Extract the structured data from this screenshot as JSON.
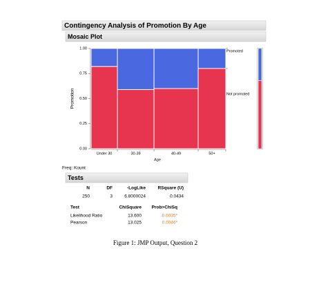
{
  "header": {
    "title": "Contingency Analysis of Promotion By Age",
    "section": "Mosaic Plot"
  },
  "chart_data": {
    "type": "mosaic",
    "x_label": "Age",
    "y_label": "Promotion",
    "categories": [
      "Under 30",
      "30-39",
      "40-49",
      "50+"
    ],
    "x_shares": [
      0.195,
      0.272,
      0.328,
      0.205
    ],
    "series": [
      {
        "name": "Not promoted",
        "color": "#e8354f",
        "values": [
          0.82,
          0.59,
          0.6,
          0.8
        ],
        "overall": 0.68
      },
      {
        "name": "Promoted",
        "color": "#4a68e0",
        "values": [
          0.18,
          0.41,
          0.4,
          0.2
        ],
        "overall": 0.32
      }
    ],
    "ylim": [
      0,
      1
    ],
    "yticks": [
      {
        "value": 0,
        "label": "0.00"
      },
      {
        "value": 0.25,
        "label": "0.25"
      },
      {
        "value": 0.5,
        "label": "0.50"
      },
      {
        "value": 0.75,
        "label": "0.75"
      },
      {
        "value": 1,
        "label": "1.00"
      }
    ]
  },
  "freq": "Freq: Kount",
  "tests": {
    "title": "Tests",
    "summary": {
      "header": [
        "N",
        "DF",
        "-LogLike",
        "RSquare (U)"
      ],
      "row": [
        "250",
        "3",
        "6.8000024",
        "0.0434"
      ]
    },
    "table": {
      "header": [
        "Test",
        "ChiSquare",
        "Prob>ChiSq"
      ],
      "rows": [
        [
          "Likelihood Ratio",
          "13.600",
          "0.0035*"
        ],
        [
          "Pearson",
          "13.025",
          "0.0046*"
        ]
      ]
    }
  },
  "caption": "Figure 1: JMP Output, Question 2"
}
